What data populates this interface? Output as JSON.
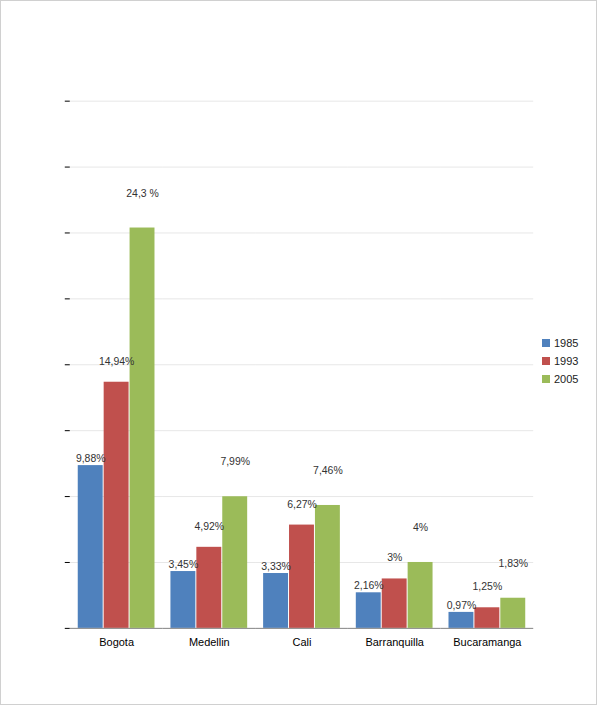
{
  "chart_data": {
    "type": "bar",
    "categories": [
      "Bogota",
      "Medellin",
      "Cali",
      "Barranquilla",
      "Bucaramanga"
    ],
    "series": [
      {
        "name": "1985",
        "color": "#4f81bd",
        "values": [
          9.88,
          3.45,
          3.33,
          2.16,
          0.97
        ],
        "value_labels": [
          "9,88%",
          "3,45%",
          "3,33%",
          "2,16%",
          "0,97%"
        ]
      },
      {
        "name": "1993",
        "color": "#c0504d",
        "values": [
          14.94,
          4.92,
          6.27,
          3,
          1.25
        ],
        "value_labels": [
          "14,94%",
          "4,92%",
          "6,27%",
          "3%",
          "1,25%"
        ]
      },
      {
        "name": "2005",
        "color": "#9bbb59",
        "values": [
          24.3,
          7.99,
          7.46,
          4,
          1.83
        ],
        "value_labels": [
          "24,3 %",
          "7,99%",
          "7,46%",
          "4%",
          "1,83%"
        ]
      }
    ],
    "ylim": [
      0,
      32
    ],
    "yticks": [
      0,
      4,
      8,
      12,
      16,
      20,
      24,
      28,
      32
    ],
    "grid": true,
    "legend": "right",
    "data_labels": true,
    "tick_labels": "x"
  }
}
